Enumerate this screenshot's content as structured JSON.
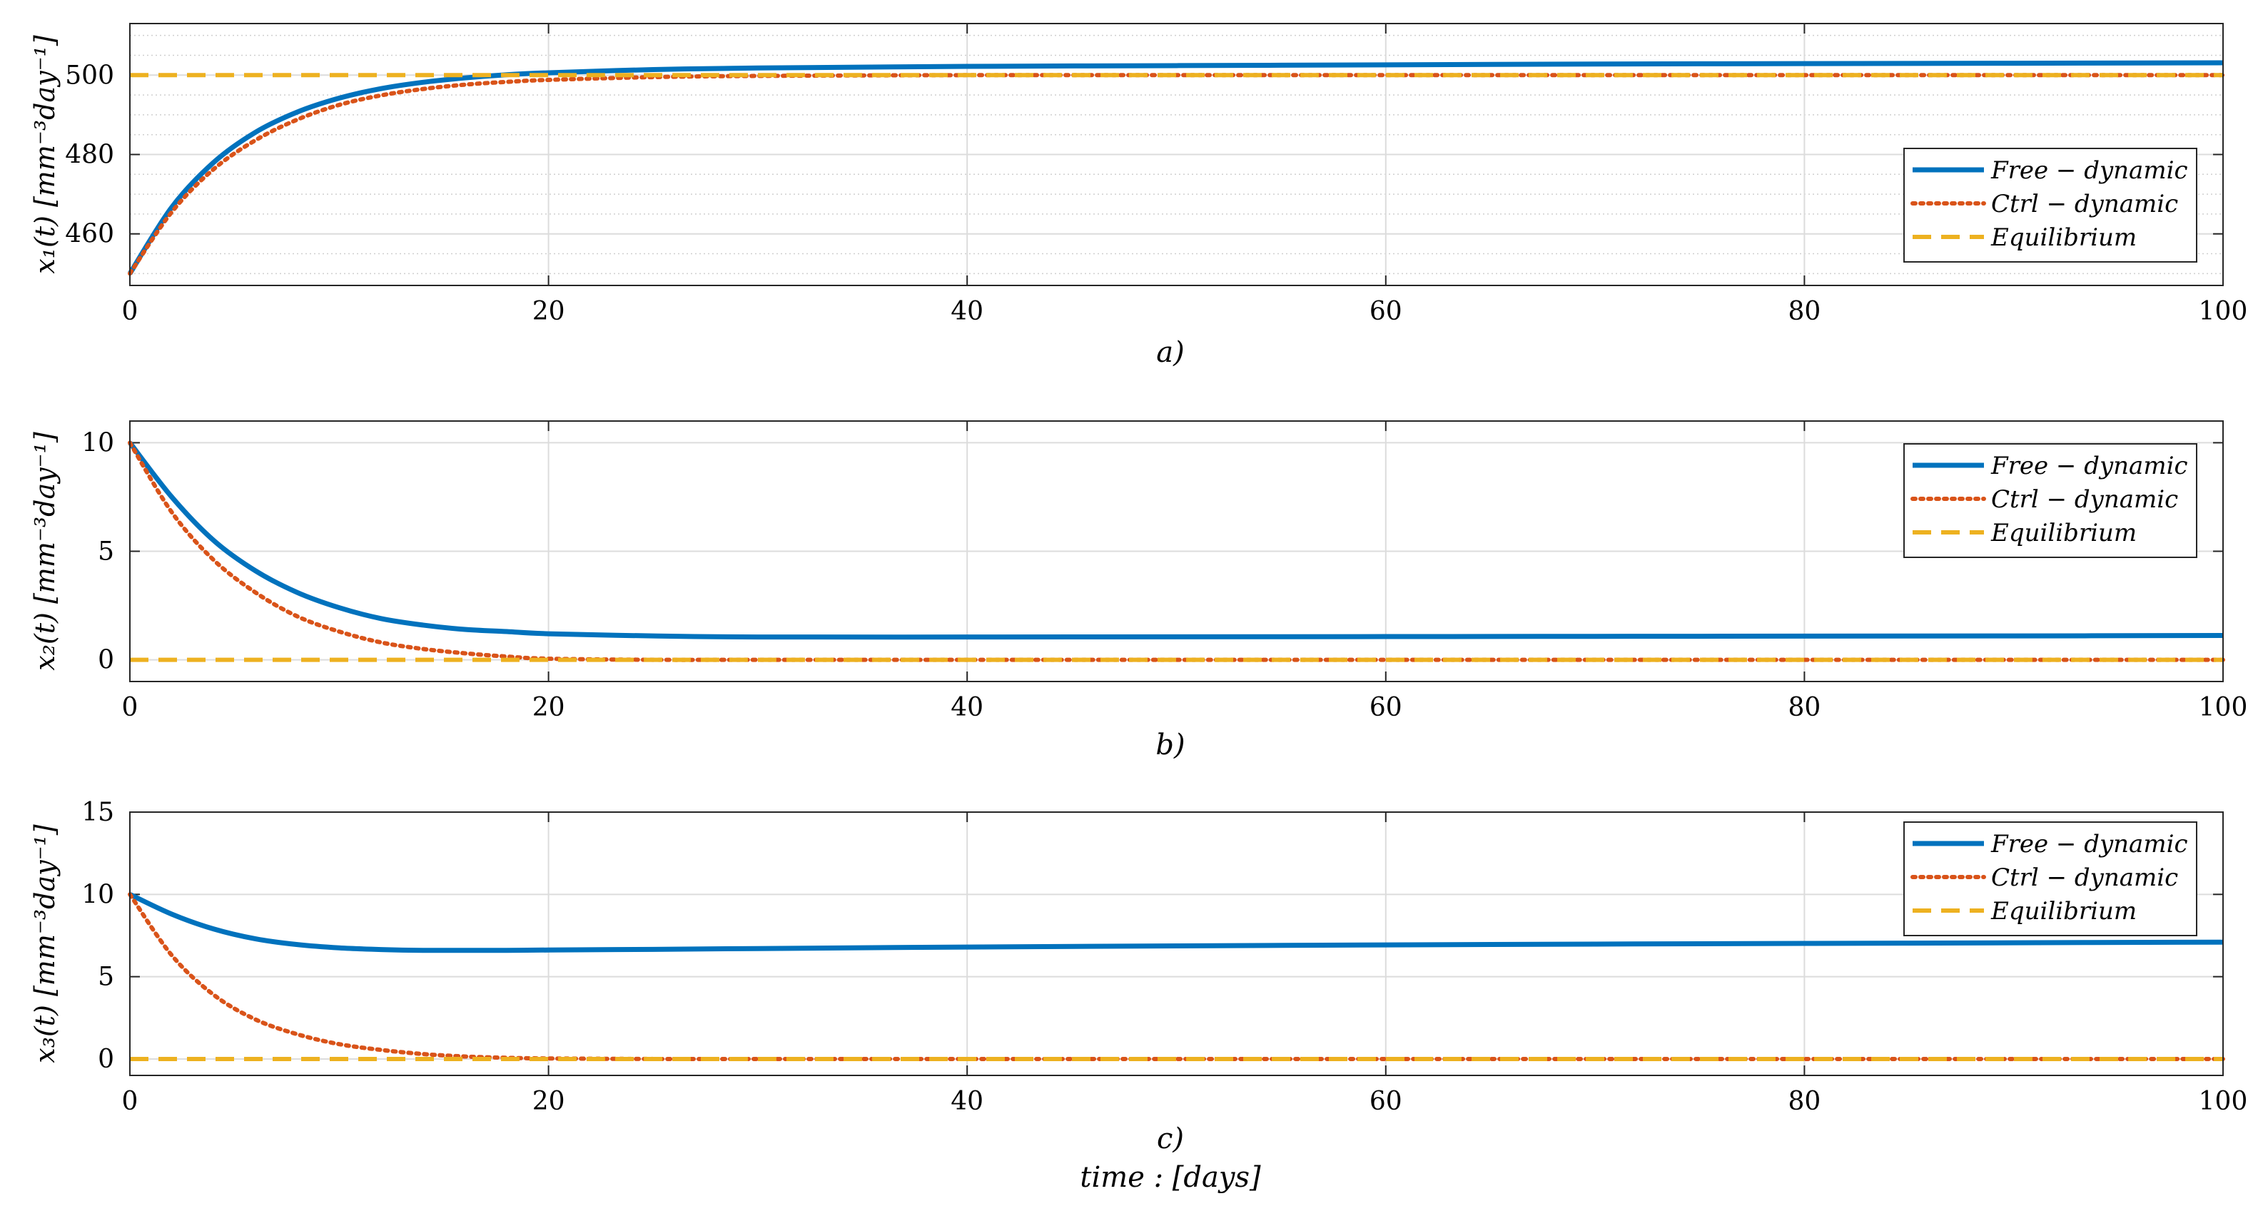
{
  "chart_data": [
    {
      "type": "line",
      "panel_label": "a)",
      "ylabel": "x₁(t) [mm⁻³day⁻¹]",
      "xlim": [
        0,
        100
      ],
      "ylim": [
        447,
        513
      ],
      "xticks": [
        0,
        20,
        40,
        60,
        80,
        100
      ],
      "yticks": [
        460,
        480,
        500
      ],
      "minor_grid_y": true,
      "grid": true,
      "legend_position": "right",
      "x": [
        0,
        2,
        4,
        6,
        8,
        10,
        12,
        14,
        16,
        18,
        20,
        25,
        30,
        40,
        50,
        60,
        70,
        80,
        90,
        100
      ],
      "series": [
        {
          "name": "Free − dynamic",
          "style": "solid",
          "color": "#0072BD",
          "values": [
            450,
            466.7,
            478.0,
            485.6,
            490.7,
            494.2,
            496.6,
            498.2,
            499.3,
            500.1,
            500.6,
            501.4,
            501.8,
            502.2,
            502.4,
            502.6,
            502.8,
            502.9,
            503.0,
            503.1
          ]
        },
        {
          "name": "Ctrl − dynamic",
          "style": "dotted",
          "color": "#D95319",
          "values": [
            450,
            465.5,
            476.3,
            483.6,
            488.8,
            492.5,
            494.9,
            496.5,
            497.6,
            498.3,
            498.8,
            499.5,
            499.8,
            500.0,
            500.0,
            500.0,
            500.0,
            500.0,
            500.0,
            500.0
          ]
        },
        {
          "name": "Equilibrium",
          "style": "dashed",
          "color": "#EDB120",
          "values": [
            500,
            500,
            500,
            500,
            500,
            500,
            500,
            500,
            500,
            500,
            500,
            500,
            500,
            500,
            500,
            500,
            500,
            500,
            500,
            500
          ]
        }
      ]
    },
    {
      "type": "line",
      "panel_label": "b)",
      "ylabel": "x₂(t) [mm⁻³day⁻¹]",
      "xlim": [
        0,
        100
      ],
      "ylim": [
        -1,
        11
      ],
      "xticks": [
        0,
        20,
        40,
        60,
        80,
        100
      ],
      "yticks": [
        0,
        5,
        10
      ],
      "grid": true,
      "legend_position": "top-right",
      "x": [
        0,
        2,
        4,
        6,
        8,
        10,
        12,
        14,
        16,
        18,
        20,
        25,
        30,
        40,
        50,
        60,
        70,
        80,
        90,
        100
      ],
      "series": [
        {
          "name": "Free − dynamic",
          "style": "solid",
          "color": "#0072BD",
          "values": [
            10,
            7.5,
            5.5,
            4.1,
            3.1,
            2.4,
            1.9,
            1.6,
            1.4,
            1.3,
            1.2,
            1.1,
            1.05,
            1.05,
            1.06,
            1.07,
            1.08,
            1.09,
            1.1,
            1.12
          ]
        },
        {
          "name": "Ctrl − dynamic",
          "style": "dotted",
          "color": "#D95319",
          "values": [
            10,
            6.8,
            4.6,
            3.1,
            2.0,
            1.3,
            0.8,
            0.5,
            0.3,
            0.15,
            0.05,
            0.0,
            0.0,
            0.0,
            0.0,
            0.0,
            0.0,
            0.0,
            0.0,
            0.0
          ]
        },
        {
          "name": "Equilibrium",
          "style": "dashed",
          "color": "#EDB120",
          "values": [
            0,
            0,
            0,
            0,
            0,
            0,
            0,
            0,
            0,
            0,
            0,
            0,
            0,
            0,
            0,
            0,
            0,
            0,
            0,
            0
          ]
        }
      ]
    },
    {
      "type": "line",
      "panel_label": "c)",
      "ylabel": "x₃(t) [mm⁻³day⁻¹]",
      "xlabel": "time : [days]",
      "xlim": [
        0,
        100
      ],
      "ylim": [
        -1,
        15
      ],
      "xticks": [
        0,
        20,
        40,
        60,
        80,
        100
      ],
      "yticks": [
        0,
        5,
        10,
        15
      ],
      "grid": true,
      "legend_position": "top-right",
      "x": [
        0,
        2,
        4,
        6,
        8,
        10,
        12,
        14,
        16,
        18,
        20,
        25,
        30,
        40,
        50,
        60,
        70,
        80,
        90,
        100
      ],
      "series": [
        {
          "name": "Free − dynamic",
          "style": "solid",
          "color": "#0072BD",
          "values": [
            10,
            8.8,
            7.9,
            7.3,
            6.95,
            6.75,
            6.65,
            6.6,
            6.6,
            6.6,
            6.62,
            6.66,
            6.71,
            6.8,
            6.87,
            6.93,
            6.98,
            7.02,
            7.06,
            7.1
          ]
        },
        {
          "name": "Ctrl − dynamic",
          "style": "dotted",
          "color": "#D95319",
          "values": [
            10,
            6.3,
            3.9,
            2.4,
            1.5,
            0.9,
            0.55,
            0.3,
            0.15,
            0.07,
            0.03,
            0.0,
            0.0,
            0.0,
            0.0,
            0.0,
            0.0,
            0.0,
            0.0,
            0.0
          ]
        },
        {
          "name": "Equilibrium",
          "style": "dashed",
          "color": "#EDB120",
          "values": [
            0,
            0,
            0,
            0,
            0,
            0,
            0,
            0,
            0,
            0,
            0,
            0,
            0,
            0,
            0,
            0,
            0,
            0,
            0,
            0
          ]
        }
      ]
    }
  ]
}
